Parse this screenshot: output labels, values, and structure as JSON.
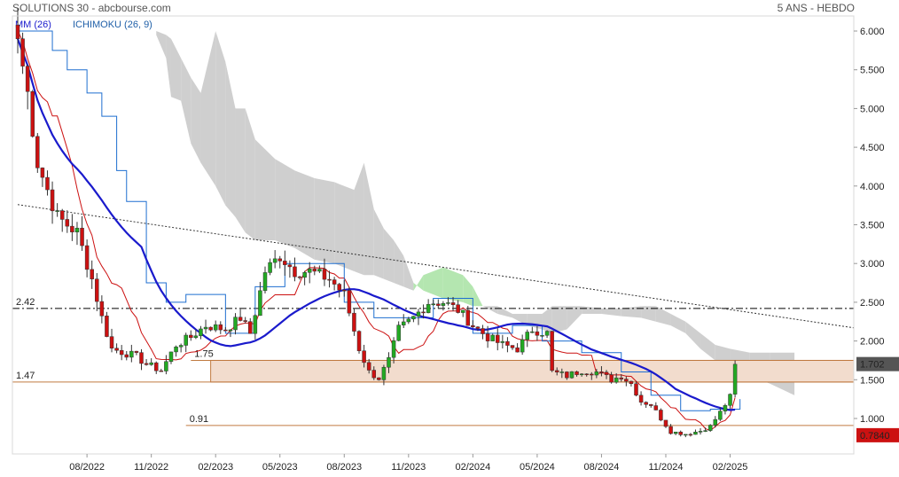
{
  "header": {
    "title": "SOLUTIONS 30 - abcbourse.com",
    "period": "5 ANS - HEBDO"
  },
  "legend": [
    {
      "label": "MM (26)",
      "color": "#1a1acc"
    },
    {
      "label": "ICHIMOKU (26, 9)",
      "color": "#1f5fa8"
    }
  ],
  "colors": {
    "up": "#22aa22",
    "down": "#cc1111",
    "mm": "#1a1acc",
    "kijun": "#1f6fd0",
    "tenkan": "#cc1111",
    "cloud_bearish": "#cfcfcf",
    "cloud_bullish": "#b4e6b0",
    "zone": "#f2dccd",
    "zone_line": "#c07a40"
  },
  "chart_data": {
    "type": "candlestick",
    "title": "SOLUTIONS 30",
    "y_axis": {
      "min": 0.75,
      "max": 6.0,
      "ticks": [
        "6.000",
        "5.500",
        "5.000",
        "4.500",
        "4.000",
        "3.500",
        "3.000",
        "2.500",
        "2.000",
        "1.500",
        "1.000"
      ],
      "position": "right"
    },
    "x_axis": {
      "ticks": [
        "08/2022",
        "11/2022",
        "02/2023",
        "05/2023",
        "08/2023",
        "11/2023",
        "02/2024",
        "05/2024",
        "08/2024",
        "11/2024",
        "02/2025"
      ],
      "tick_index": [
        14,
        27,
        40,
        53,
        66,
        79,
        92,
        105,
        118,
        131,
        144
      ]
    },
    "price_badges": [
      {
        "label": "1.702",
        "value": 1.702,
        "color": "#555555"
      },
      {
        "label": "0.7840",
        "value": 0.784,
        "color": "#cc1111"
      }
    ],
    "levels": [
      {
        "label": "2.42",
        "value": 2.42,
        "style": "dash-dot",
        "color": "#000000"
      },
      {
        "label": "1.75",
        "value": 1.75,
        "style": "solid",
        "color": "#c07a40"
      },
      {
        "label": "1.47",
        "value": 1.47,
        "style": "solid",
        "color": "#c07a40"
      },
      {
        "label": "0.91",
        "value": 0.91,
        "style": "solid",
        "color": "#c07a40"
      }
    ],
    "support_zone": {
      "low": 1.47,
      "high": 1.75,
      "from_index": 39,
      "to_index": 157
    },
    "trendline": {
      "from": {
        "index": 0,
        "value": 3.76
      },
      "to": {
        "index": 157,
        "value": 2.17
      }
    },
    "anchors": [
      [
        0,
        5.9
      ],
      [
        2,
        5.2
      ],
      [
        4,
        4.3
      ],
      [
        8,
        3.6
      ],
      [
        12,
        3.4
      ],
      [
        15,
        2.8
      ],
      [
        17,
        2.3
      ],
      [
        19,
        1.9
      ],
      [
        24,
        1.8
      ],
      [
        26,
        1.7
      ],
      [
        29,
        1.62
      ],
      [
        32,
        1.95
      ],
      [
        35,
        2.05
      ],
      [
        38,
        2.2
      ],
      [
        42,
        2.15
      ],
      [
        45,
        2.3
      ],
      [
        47,
        2.1
      ],
      [
        50,
        2.9
      ],
      [
        53,
        3.1
      ],
      [
        56,
        2.9
      ],
      [
        59,
        2.9
      ],
      [
        63,
        2.8
      ],
      [
        66,
        2.6
      ],
      [
        69,
        1.9
      ],
      [
        71,
        1.6
      ],
      [
        73,
        1.52
      ],
      [
        75,
        1.75
      ],
      [
        77,
        2.15
      ],
      [
        80,
        2.3
      ],
      [
        83,
        2.5
      ],
      [
        86,
        2.5
      ],
      [
        89,
        2.4
      ],
      [
        92,
        2.2
      ],
      [
        95,
        2.05
      ],
      [
        98,
        1.95
      ],
      [
        101,
        1.9
      ],
      [
        104,
        2.15
      ],
      [
        107,
        2.1
      ],
      [
        108,
        1.6
      ],
      [
        111,
        1.55
      ],
      [
        114,
        1.62
      ],
      [
        117,
        1.6
      ],
      [
        120,
        1.5
      ],
      [
        122,
        1.55
      ],
      [
        124,
        1.45
      ],
      [
        126,
        1.22
      ],
      [
        128,
        1.18
      ],
      [
        130,
        1.0
      ],
      [
        132,
        0.83
      ],
      [
        135,
        0.8
      ],
      [
        138,
        0.84
      ],
      [
        140,
        0.9
      ],
      [
        142,
        1.08
      ],
      [
        144,
        1.28
      ],
      [
        145,
        1.7
      ]
    ],
    "kijun_breaks": [
      [
        0,
        6.0
      ],
      [
        7,
        5.75
      ],
      [
        10,
        5.5
      ],
      [
        14,
        5.2
      ],
      [
        17,
        4.9
      ],
      [
        20,
        4.2
      ],
      [
        22,
        3.8
      ],
      [
        26,
        2.75
      ],
      [
        30,
        2.5
      ],
      [
        34,
        2.6
      ],
      [
        42,
        2.1
      ],
      [
        48,
        2.7
      ],
      [
        54,
        3.0
      ],
      [
        66,
        2.5
      ],
      [
        72,
        2.3
      ],
      [
        78,
        2.3
      ],
      [
        84,
        2.55
      ],
      [
        92,
        2.1
      ],
      [
        100,
        2.2
      ],
      [
        106,
        2.0
      ],
      [
        114,
        1.85
      ],
      [
        122,
        1.6
      ],
      [
        128,
        1.3
      ],
      [
        134,
        1.1
      ],
      [
        140,
        1.12
      ],
      [
        146,
        1.25
      ]
    ],
    "cloud": [
      [
        28,
        5.95,
        6.0
      ],
      [
        30,
        5.65,
        5.95
      ],
      [
        31,
        5.15,
        5.9
      ],
      [
        33,
        5.1,
        5.65
      ],
      [
        35,
        4.55,
        5.4
      ],
      [
        37,
        4.3,
        5.2
      ],
      [
        40,
        4.0,
        6.0
      ],
      [
        42,
        3.75,
        5.6
      ],
      [
        44,
        3.6,
        5.0
      ],
      [
        46,
        3.4,
        5.0
      ],
      [
        48,
        3.3,
        4.6
      ],
      [
        52,
        3.3,
        4.35
      ],
      [
        56,
        3.2,
        4.2
      ],
      [
        60,
        3.05,
        4.1
      ],
      [
        64,
        3.0,
        4.05
      ],
      [
        68,
        2.9,
        3.95
      ],
      [
        70,
        2.85,
        4.3
      ],
      [
        72,
        2.85,
        3.7
      ],
      [
        74,
        2.8,
        3.45
      ],
      [
        76,
        2.75,
        3.3
      ],
      [
        78,
        2.7,
        3.1
      ],
      [
        80,
        2.65,
        2.75
      ],
      [
        82,
        2.85,
        2.65
      ],
      [
        86,
        2.95,
        2.55
      ],
      [
        90,
        2.85,
        2.5
      ],
      [
        92,
        2.7,
        2.45
      ],
      [
        94,
        2.45,
        2.45
      ],
      [
        97,
        2.35,
        2.45
      ],
      [
        100,
        2.3,
        2.35
      ],
      [
        103,
        2.2,
        2.35
      ],
      [
        106,
        2.15,
        2.35
      ],
      [
        108,
        2.1,
        2.45
      ],
      [
        111,
        2.15,
        2.45
      ],
      [
        114,
        2.35,
        2.45
      ],
      [
        118,
        2.35,
        2.42
      ],
      [
        122,
        2.32,
        2.42
      ],
      [
        126,
        2.3,
        2.45
      ],
      [
        129,
        2.25,
        2.45
      ],
      [
        132,
        2.2,
        2.35
      ],
      [
        135,
        2.1,
        2.25
      ],
      [
        138,
        1.9,
        2.1
      ],
      [
        141,
        1.75,
        1.95
      ],
      [
        144,
        1.65,
        1.9
      ],
      [
        148,
        1.55,
        1.85
      ],
      [
        152,
        1.45,
        1.85
      ],
      [
        157,
        1.3,
        1.85
      ]
    ]
  }
}
